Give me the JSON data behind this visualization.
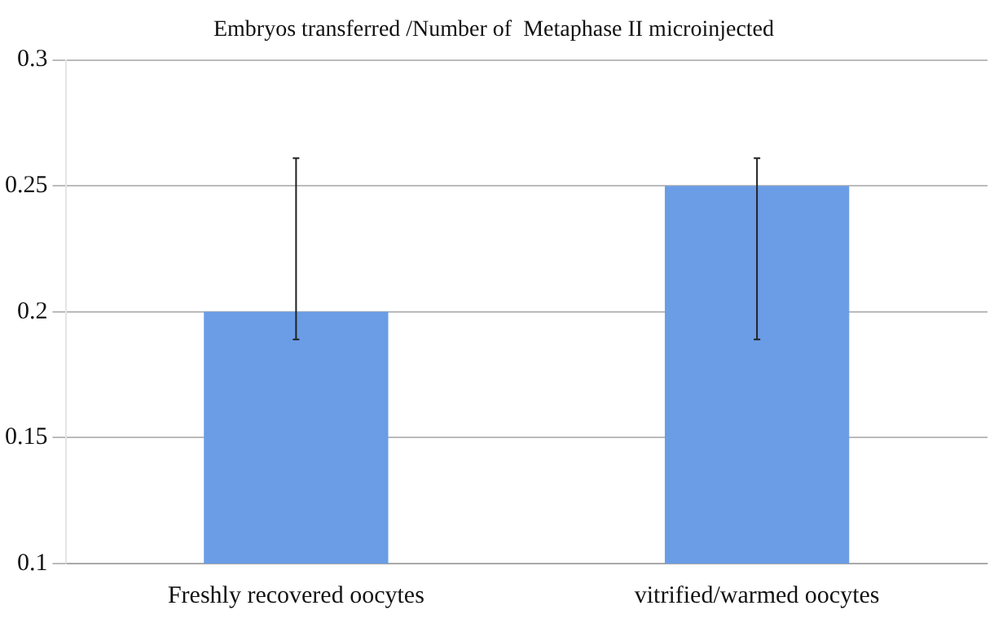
{
  "chart_data": {
    "type": "bar",
    "title": "Embryos transferred /Number of  Metaphase II microinjected",
    "categories": [
      "Freshly recovered oocytes",
      "vitrified/warmed oocytes"
    ],
    "values": [
      0.2,
      0.25
    ],
    "errors": [
      [
        0.189,
        0.261
      ],
      [
        0.189,
        0.261
      ]
    ],
    "color": "#6a9de6",
    "ylim": [
      0.1,
      0.3
    ],
    "yticks": [
      0.1,
      0.15,
      0.2,
      0.25,
      0.3
    ],
    "grid": "y",
    "legend": false
  }
}
